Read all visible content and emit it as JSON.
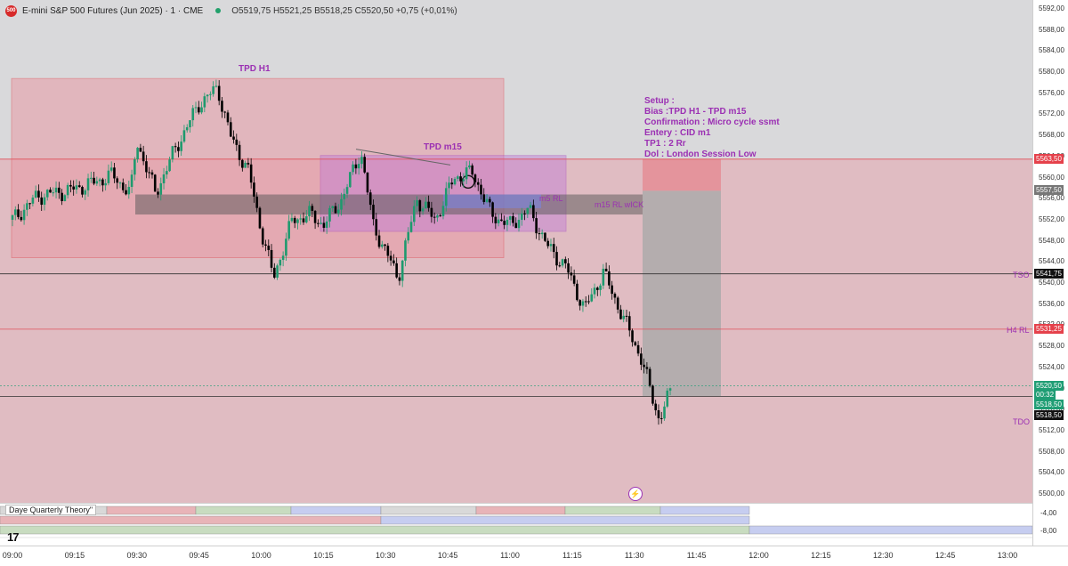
{
  "header": {
    "logo_text": "500",
    "symbol": "E-mini S&P 500 Futures (Jun 2025) · 1 · CME",
    "ohlc": "O5519,75  H5521,25  B5518,25  C5520,50  +0,75 (+0,01%)"
  },
  "annotations": {
    "tpd_h1": "TPD H1",
    "tpd_m15": "TPD m15",
    "m5_rl": "m5 RL",
    "m15_rl_wick": "m15 RL wICK",
    "tso": "TSO",
    "h4_rl": "H4 RL",
    "tdo": "TDO"
  },
  "setup": {
    "title": "Setup :",
    "bias": "Bias :TPD H1 - TPD m15",
    "confirmation": "Confirmation : Micro cycle ssmt",
    "entry": "Entery : CID m1",
    "tp1": "TP1 : 2 Rr",
    "dol": "Dol : London Session Low"
  },
  "price_axis": [
    "5592,00",
    "5588,00",
    "5584,00",
    "5580,00",
    "5576,00",
    "5572,00",
    "5568,00",
    "5564,00",
    "5560,00",
    "5556,00",
    "5552,00",
    "5548,00",
    "5544,00",
    "5540,00",
    "5536,00",
    "5532,00",
    "5528,00",
    "5524,00",
    "5520,00",
    "5516,00",
    "5512,00",
    "5508,00",
    "5504,00",
    "5500,00"
  ],
  "price_tags": {
    "upper": "5563,50",
    "entry": "5557,50",
    "tso": "5541,75",
    "h4rl": "5531,25",
    "last": "5520,50",
    "countdown": "00:32",
    "bid": "5518,50",
    "tdo": "5518,50"
  },
  "osc_axis": [
    "-4,00",
    "-8,00"
  ],
  "time_axis": [
    "09:00",
    "09:15",
    "09:30",
    "09:45",
    "10:00",
    "10:15",
    "10:30",
    "10:45",
    "11:00",
    "11:15",
    "11:30",
    "11:45",
    "12:00",
    "12:15",
    "12:30",
    "12:45",
    "13:00"
  ],
  "panel": {
    "label": "Daye Quarterly Theory\""
  },
  "branding": {
    "tv_logo": "17"
  },
  "colors": {
    "up": "#1e9a6e",
    "down": "#000000",
    "zone_red": "#e89aa5",
    "zone_purple": "#c07ad6",
    "label_purple": "#9b30b3",
    "tag_red": "#e5414b",
    "tag_green": "#1f9d74"
  }
}
